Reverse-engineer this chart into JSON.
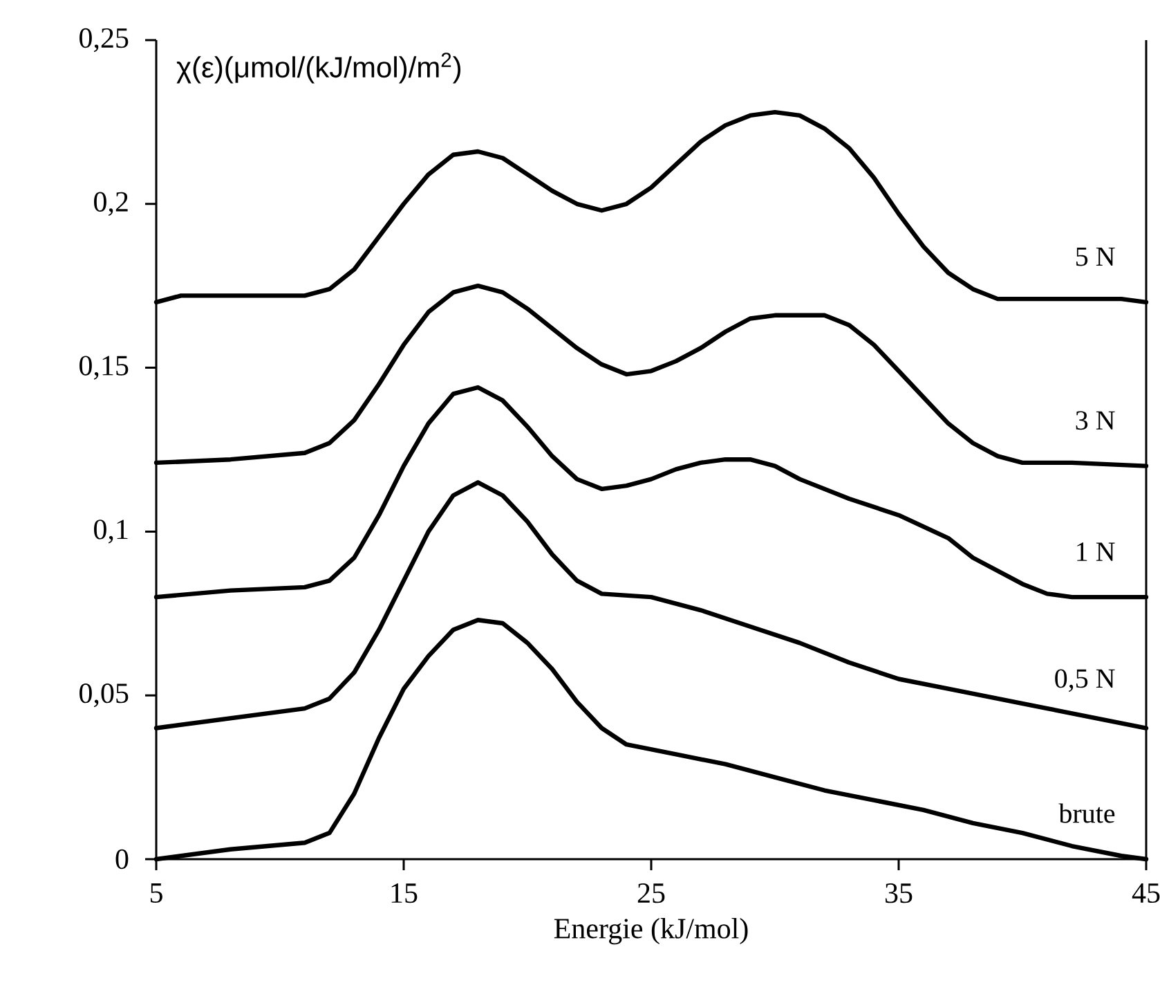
{
  "chart_data": {
    "type": "line",
    "xlabel": "Energie (kJ/mol)",
    "ylabel": "χ(ε)(μmol/(kJ/mol)/m$^{2}$)",
    "xlim": [
      5,
      45
    ],
    "ylim": [
      0,
      0.25
    ],
    "xticks": [
      5,
      15,
      25,
      35,
      45
    ],
    "yticks": [
      0,
      {
        "value": 0.05,
        "label": "0,05"
      },
      {
        "value": 0.1,
        "label": "0,1"
      },
      {
        "value": 0.15,
        "label": "0,15"
      },
      {
        "value": 0.2,
        "label": "0,2"
      },
      {
        "value": 0.25,
        "label": "0,25"
      }
    ],
    "legend": false,
    "grid": false,
    "marker": "none",
    "line_style": "solid",
    "series": [
      {
        "name": "brute",
        "color": "#000000",
        "x": [
          5,
          8,
          11,
          12,
          13,
          14,
          15,
          16,
          17,
          18,
          19,
          20,
          21,
          22,
          23,
          24,
          26,
          28,
          30,
          32,
          34,
          36,
          38,
          40,
          42,
          44,
          45
        ],
        "values": [
          0,
          0.003,
          0.005,
          0.008,
          0.02,
          0.037,
          0.052,
          0.062,
          0.07,
          0.073,
          0.072,
          0.066,
          0.058,
          0.048,
          0.04,
          0.035,
          0.032,
          0.029,
          0.025,
          0.021,
          0.018,
          0.015,
          0.011,
          0.008,
          0.004,
          0.001,
          0
        ]
      },
      {
        "name": "0,5 N",
        "color": "#000000",
        "x": [
          5,
          8,
          11,
          12,
          13,
          14,
          15,
          16,
          17,
          18,
          19,
          20,
          21,
          22,
          23,
          25,
          27,
          29,
          31,
          33,
          35,
          37,
          39,
          41,
          43,
          45
        ],
        "values": [
          0.04,
          0.043,
          0.046,
          0.049,
          0.057,
          0.07,
          0.085,
          0.1,
          0.111,
          0.115,
          0.111,
          0.103,
          0.093,
          0.085,
          0.081,
          0.08,
          0.076,
          0.071,
          0.066,
          0.06,
          0.055,
          0.052,
          0.049,
          0.046,
          0.043,
          0.04
        ]
      },
      {
        "name": "1 N",
        "color": "#000000",
        "x": [
          5,
          8,
          11,
          12,
          13,
          14,
          15,
          16,
          17,
          18,
          19,
          20,
          21,
          22,
          23,
          24,
          25,
          26,
          27,
          28,
          29,
          30,
          31,
          33,
          35,
          37,
          38,
          40,
          41,
          42,
          45
        ],
        "values": [
          0.08,
          0.082,
          0.083,
          0.085,
          0.092,
          0.105,
          0.12,
          0.133,
          0.142,
          0.144,
          0.14,
          0.132,
          0.123,
          0.116,
          0.113,
          0.114,
          0.116,
          0.119,
          0.121,
          0.122,
          0.122,
          0.12,
          0.116,
          0.11,
          0.105,
          0.098,
          0.092,
          0.084,
          0.081,
          0.08,
          0.08
        ]
      },
      {
        "name": "3 N",
        "color": "#000000",
        "x": [
          5,
          8,
          11,
          12,
          13,
          14,
          15,
          16,
          17,
          18,
          19,
          20,
          21,
          22,
          23,
          24,
          25,
          26,
          27,
          28,
          29,
          30,
          32,
          33,
          34,
          35,
          36,
          37,
          38,
          39,
          40,
          42,
          45
        ],
        "values": [
          0.121,
          0.122,
          0.124,
          0.127,
          0.134,
          0.145,
          0.157,
          0.167,
          0.173,
          0.175,
          0.173,
          0.168,
          0.162,
          0.156,
          0.151,
          0.148,
          0.149,
          0.152,
          0.156,
          0.161,
          0.165,
          0.166,
          0.166,
          0.163,
          0.157,
          0.149,
          0.141,
          0.133,
          0.127,
          0.123,
          0.121,
          0.121,
          0.12
        ]
      },
      {
        "name": "5 N",
        "color": "#000000",
        "x": [
          5,
          6,
          11,
          12,
          13,
          14,
          15,
          16,
          17,
          18,
          19,
          20,
          21,
          22,
          23,
          24,
          25,
          26,
          27,
          28,
          29,
          30,
          31,
          32,
          33,
          34,
          35,
          36,
          37,
          38,
          39,
          40,
          44,
          45
        ],
        "values": [
          0.17,
          0.172,
          0.172,
          0.174,
          0.18,
          0.19,
          0.2,
          0.209,
          0.215,
          0.216,
          0.214,
          0.209,
          0.204,
          0.2,
          0.198,
          0.2,
          0.205,
          0.212,
          0.219,
          0.224,
          0.227,
          0.228,
          0.227,
          0.223,
          0.217,
          0.208,
          0.197,
          0.187,
          0.179,
          0.174,
          0.171,
          0.171,
          0.171,
          0.17
        ]
      }
    ]
  }
}
